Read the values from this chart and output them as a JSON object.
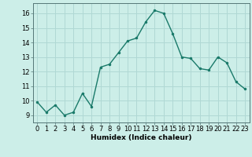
{
  "x": [
    0,
    1,
    2,
    3,
    4,
    5,
    6,
    7,
    8,
    9,
    10,
    11,
    12,
    13,
    14,
    15,
    16,
    17,
    18,
    19,
    20,
    21,
    22,
    23
  ],
  "y": [
    9.9,
    9.2,
    9.7,
    9.0,
    9.2,
    10.5,
    9.6,
    12.3,
    12.5,
    13.3,
    14.1,
    14.3,
    15.4,
    16.2,
    16.0,
    14.6,
    13.0,
    12.9,
    12.2,
    12.1,
    13.0,
    12.6,
    11.3,
    10.8
  ],
  "line_color": "#1a7a6a",
  "marker": ".",
  "marker_size": 3,
  "bg_color": "#cceee8",
  "grid_color": "#b0d8d4",
  "xlabel": "Humidex (Indice chaleur)",
  "ylabel_ticks": [
    9,
    10,
    11,
    12,
    13,
    14,
    15,
    16
  ],
  "xlim": [
    -0.5,
    23.5
  ],
  "ylim": [
    8.5,
    16.7
  ],
  "xtick_labels": [
    "0",
    "1",
    "2",
    "3",
    "4",
    "5",
    "6",
    "7",
    "8",
    "9",
    "10",
    "11",
    "12",
    "13",
    "14",
    "15",
    "16",
    "17",
    "18",
    "19",
    "20",
    "21",
    "22",
    "23"
  ],
  "xlabel_fontsize": 6.5,
  "tick_fontsize": 6.0,
  "line_width": 1.0,
  "spine_color": "#557777"
}
